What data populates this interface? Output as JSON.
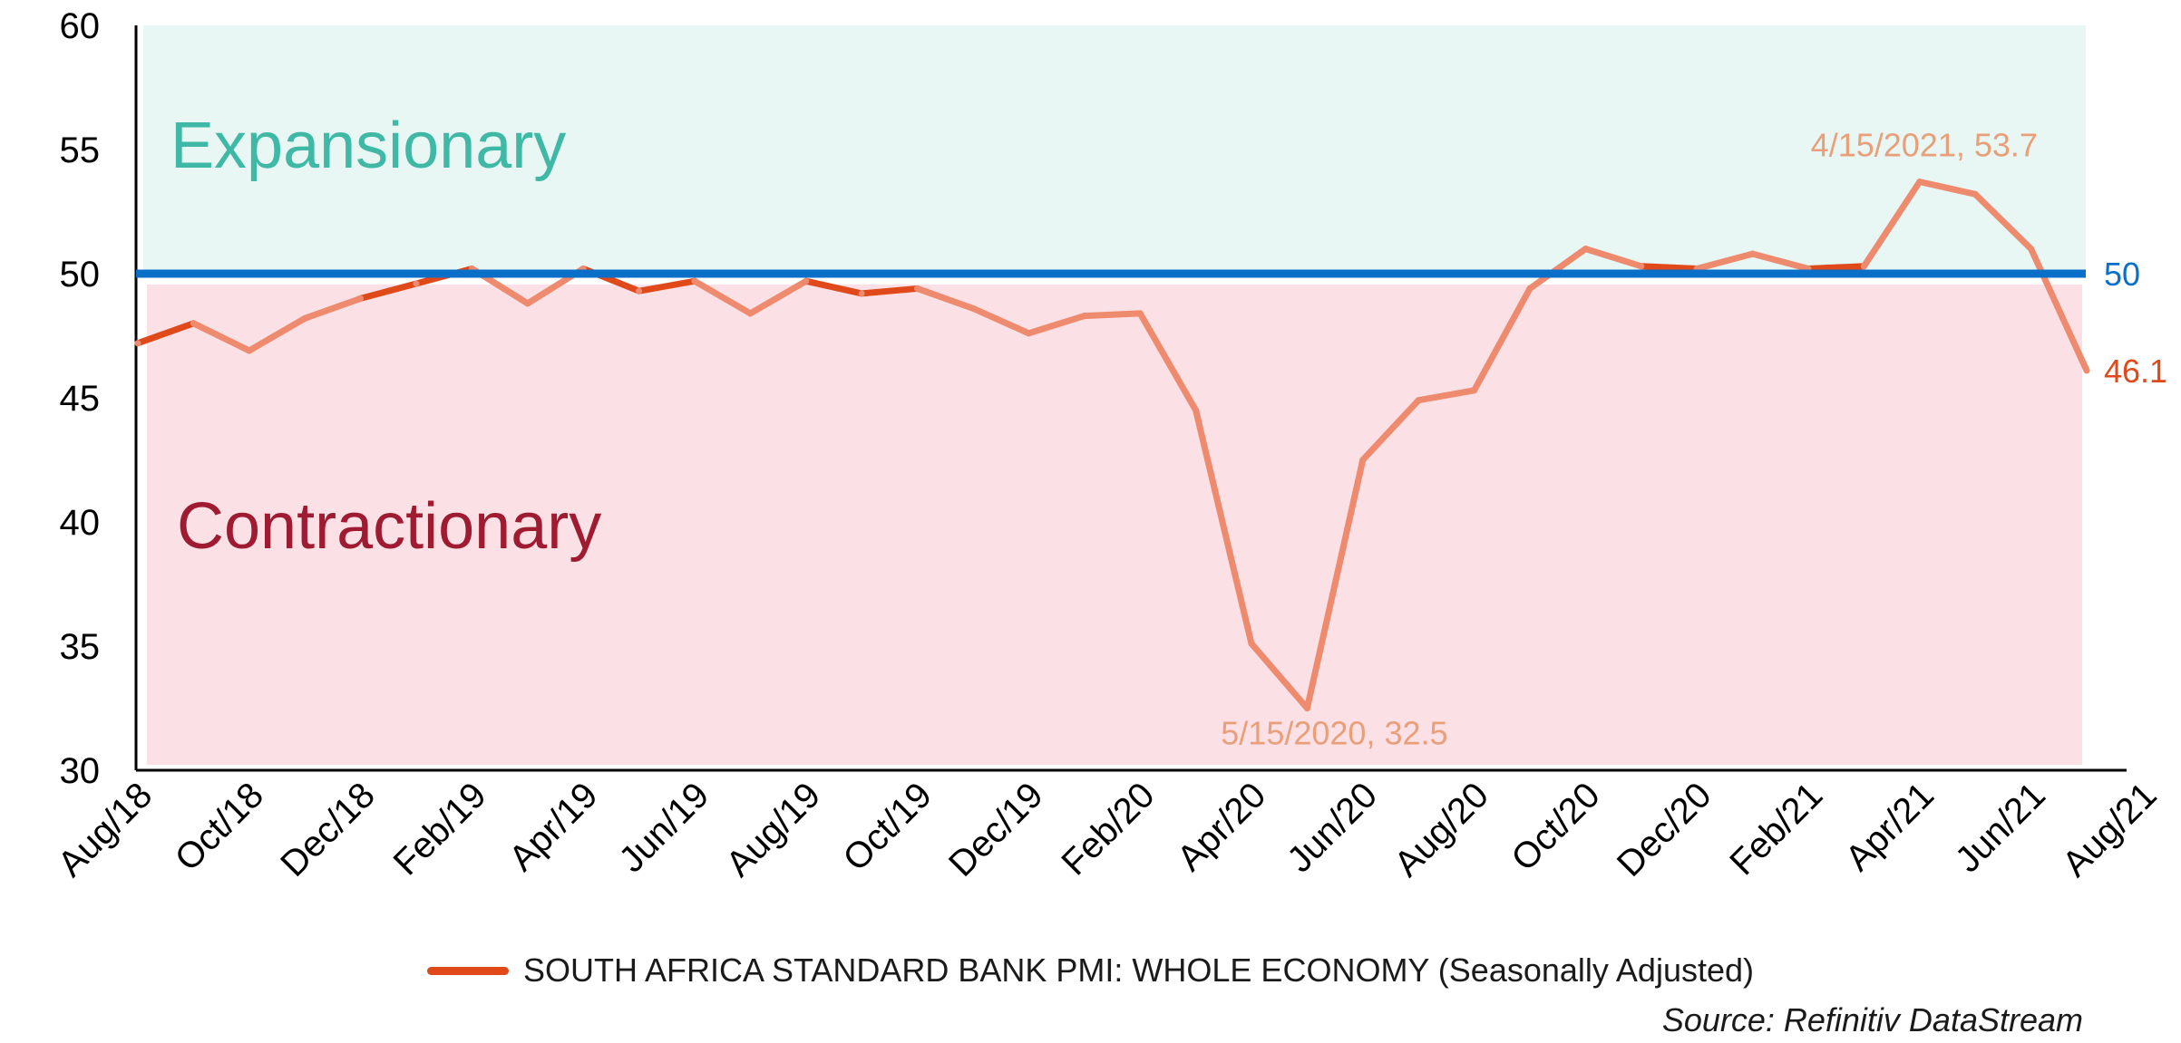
{
  "chart_data": {
    "type": "line",
    "ylim": [
      30,
      60
    ],
    "yticks": [
      "30",
      "35",
      "40",
      "45",
      "50",
      "55",
      "60"
    ],
    "x_start": "2018-08-15",
    "x_tick_labels": [
      "Aug/18",
      "Oct/18",
      "Dec/18",
      "Feb/19",
      "Apr/19",
      "Jun/19",
      "Aug/19",
      "Oct/19",
      "Dec/19",
      "Feb/20",
      "Apr/20",
      "Jun/20",
      "Aug/20",
      "Oct/20",
      "Dec/20",
      "Feb/21",
      "Apr/21",
      "Jun/21",
      "Aug/21"
    ],
    "series": [
      {
        "name": "SOUTH AFRICA STANDARD BANK PMI: WHOLE ECONOMY (Seasonally Adjusted)",
        "color": "#e04a1a",
        "values": [
          47.2,
          48.0,
          46.9,
          48.2,
          49.0,
          49.6,
          50.2,
          48.8,
          50.2,
          49.3,
          49.7,
          48.4,
          49.7,
          49.2,
          49.4,
          48.6,
          47.6,
          48.3,
          48.4,
          44.5,
          35.1,
          32.5,
          42.5,
          44.9,
          45.3,
          49.4,
          51.0,
          50.3,
          50.2,
          50.8,
          50.2,
          50.3,
          53.7,
          53.2,
          51.0,
          46.1
        ]
      }
    ],
    "threshold": {
      "value": 50,
      "label": "50",
      "color": "#0a6fc9"
    },
    "zones": {
      "expansionary": {
        "label": "Expansionary",
        "color": "#3fb9a5",
        "fill": "#e8f7f4"
      },
      "contractionary": {
        "label": "Contractionary",
        "color": "#9e1b32",
        "fill": "#fbe1e5"
      }
    },
    "annotations": [
      {
        "text": "4/15/2021, 53.7",
        "color": "#e9a07a"
      },
      {
        "text": "5/15/2020, 32.5",
        "color": "#e9a07a"
      },
      {
        "text": "46.1",
        "color": "#e04a1a"
      }
    ],
    "line_color_in_zone": "#ee8a6e",
    "legend": {
      "placement": "bottom-center"
    },
    "source": "Source: Refinitiv DataStream"
  }
}
